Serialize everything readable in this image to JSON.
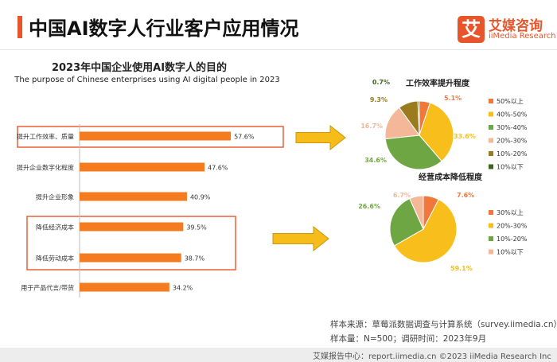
{
  "header": {
    "title": "中国AI数字人行业客户应用情况",
    "logo_mark": "艾",
    "logo_cn": "艾媒咨询",
    "logo_en": "iiMedia Research"
  },
  "colors": {
    "accent": "#E8552A",
    "bar": "#F47B20"
  },
  "source": {
    "line1": "样本来源：草莓派数据调查与计算系统（survey.iimedia.cn）",
    "line2": "样本量：N=500；调研时间：2023年9月"
  },
  "footer": {
    "text": "艾媒报告中心：report.iimedia.cn  ©2023  iiMedia Research  Inc"
  },
  "chart_data": [
    {
      "type": "bar",
      "orientation": "horizontal",
      "title": "2023年中国企业使用AI数字人的目的",
      "subtitle": "The purpose of Chinese enterprises using AI digital people in 2023",
      "categories": [
        "提升工作效率、质量",
        "提升企业数字化程度",
        "提升企业形象",
        "降低经济成本",
        "降低劳动成本",
        "用于产品代言/带货"
      ],
      "values": [
        57.6,
        47.6,
        40.9,
        39.5,
        38.7,
        34.2
      ],
      "value_labels": [
        "57.6%",
        "47.6%",
        "40.9%",
        "39.5%",
        "38.7%",
        "34.2%"
      ],
      "xlim": [
        0,
        100
      ],
      "highlighted_groups": [
        [
          0
        ],
        [
          3,
          4
        ]
      ]
    },
    {
      "type": "pie",
      "title": "工作效率提升程度",
      "categories": [
        "50%以上",
        "40%-50%",
        "30%-40%",
        "20%-30%",
        "10%-20%",
        "10%以下"
      ],
      "values": [
        5.1,
        33.6,
        34.6,
        16.7,
        9.3,
        0.7
      ],
      "value_labels": [
        "5.1%",
        "33.6%",
        "34.6%",
        "16.7%",
        "9.3%",
        "0.7%"
      ],
      "colors": [
        "#F0783C",
        "#F7BE1C",
        "#6FA644",
        "#F4B899",
        "#9A7B1E",
        "#3F6422"
      ],
      "legend": "right"
    },
    {
      "type": "pie",
      "title": "经营成本降低程度",
      "categories": [
        "30%以上",
        "20%-30%",
        "10%-20%",
        "10%以下"
      ],
      "values": [
        7.6,
        59.1,
        26.6,
        6.7
      ],
      "value_labels": [
        "7.6%",
        "59.1%",
        "26.6%",
        "6.7%"
      ],
      "colors": [
        "#F0783C",
        "#F7BE1C",
        "#6FA644",
        "#F4B899"
      ],
      "legend": "right"
    }
  ]
}
